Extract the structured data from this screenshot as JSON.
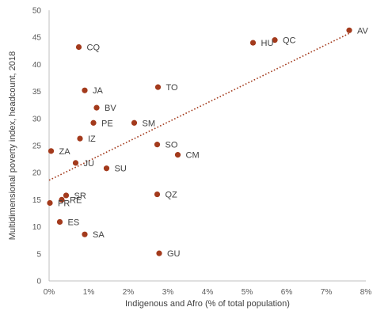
{
  "chart_data": {
    "type": "scatter",
    "title": "",
    "xlabel": "Indigenous and Afro (% of total population)",
    "ylabel": "Multidimensional poverty index, headcount, 2018",
    "xlim": [
      0,
      8
    ],
    "ylim": [
      0,
      50
    ],
    "x_ticks": [
      0,
      1,
      2,
      3,
      4,
      5,
      6,
      7,
      8
    ],
    "x_tick_labels": [
      "0%",
      "1%",
      "2%",
      "3%",
      "4%",
      "5%",
      "6%",
      "7%",
      "8%"
    ],
    "y_ticks": [
      0,
      5,
      10,
      15,
      20,
      25,
      30,
      35,
      40,
      45,
      50
    ],
    "y_tick_labels": [
      "0",
      "5",
      "10",
      "15",
      "20",
      "25",
      "30",
      "35",
      "40",
      "45",
      "50"
    ],
    "grid": false,
    "legend": "none",
    "marker_color": "#a33a1c",
    "trendline": {
      "type": "linear",
      "style": "dotted",
      "color": "#a33a1c",
      "x": [
        0,
        7.6
      ],
      "y": [
        18.6,
        45.8
      ]
    },
    "points": [
      {
        "label": "AV",
        "x": 7.58,
        "y": 46.3
      },
      {
        "label": "QC",
        "x": 5.7,
        "y": 44.5
      },
      {
        "label": "HU",
        "x": 5.15,
        "y": 44.0
      },
      {
        "label": "CQ",
        "x": 0.75,
        "y": 43.2
      },
      {
        "label": "TO",
        "x": 2.75,
        "y": 35.8
      },
      {
        "label": "JA",
        "x": 0.9,
        "y": 35.2
      },
      {
        "label": "BV",
        "x": 1.2,
        "y": 32.0
      },
      {
        "label": "PE",
        "x": 1.12,
        "y": 29.2
      },
      {
        "label": "SM",
        "x": 2.15,
        "y": 29.2
      },
      {
        "label": "IZ",
        "x": 0.78,
        "y": 26.3
      },
      {
        "label": "SO",
        "x": 2.73,
        "y": 25.2
      },
      {
        "label": "ZA",
        "x": 0.05,
        "y": 24.0
      },
      {
        "label": "CM",
        "x": 3.25,
        "y": 23.3
      },
      {
        "label": "JU",
        "x": 0.67,
        "y": 21.8
      },
      {
        "label": "SU",
        "x": 1.45,
        "y": 20.8
      },
      {
        "label": "QZ",
        "x": 2.73,
        "y": 16.0
      },
      {
        "label": "SR",
        "x": 0.43,
        "y": 15.8
      },
      {
        "label": "RE",
        "x": 0.32,
        "y": 15.0
      },
      {
        "label": "PR",
        "x": 0.02,
        "y": 14.4
      },
      {
        "label": "ES",
        "x": 0.27,
        "y": 10.9
      },
      {
        "label": "SA",
        "x": 0.9,
        "y": 8.6
      },
      {
        "label": "GU",
        "x": 2.78,
        "y": 5.1
      }
    ]
  }
}
